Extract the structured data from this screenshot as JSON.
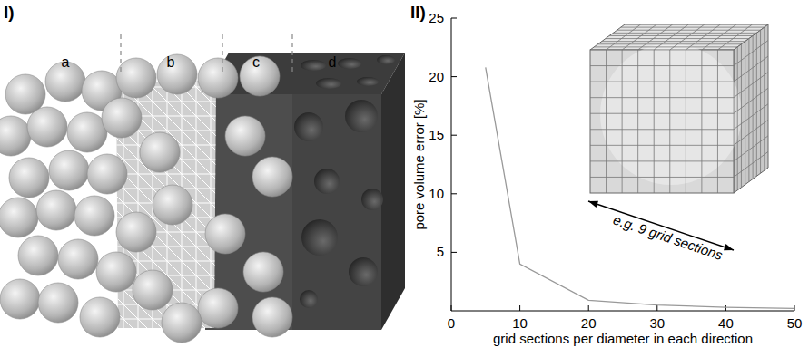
{
  "figure": {
    "panel_labels": [
      "I)",
      "II)"
    ],
    "section_labels": [
      "a",
      "b",
      "c",
      "d"
    ]
  },
  "chart_data": {
    "type": "line",
    "x_label": "grid sections per diameter in each direction",
    "y_label": "pore volume error [%]",
    "annotation": "e.g. 9 grid sections",
    "x": [
      5,
      10,
      20,
      30,
      40,
      50
    ],
    "values": [
      20.8,
      4,
      0.9,
      0.5,
      0.3,
      0.2
    ],
    "color": "#999999",
    "xlim": [
      0,
      50
    ],
    "ylim": [
      0,
      25
    ],
    "xticks": [
      0,
      10,
      20,
      30,
      40,
      50
    ],
    "yticks": [
      5,
      10,
      15,
      20,
      25
    ],
    "grid": false
  }
}
